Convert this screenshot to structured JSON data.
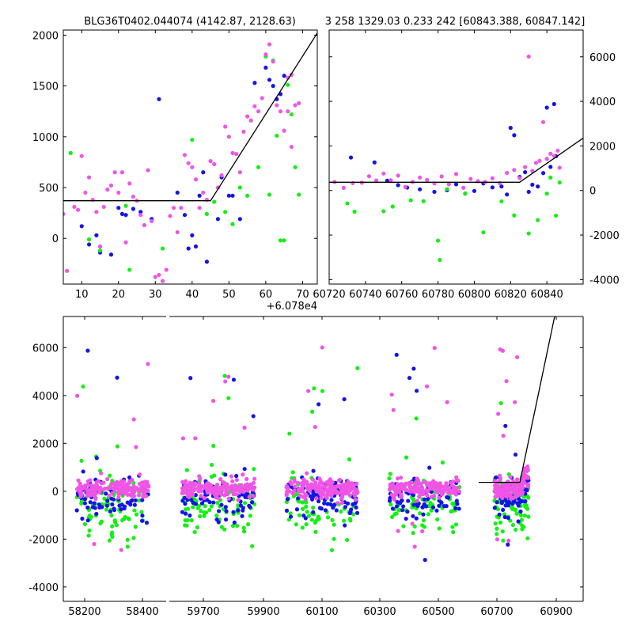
{
  "header": {
    "left_title": "BLG36T0402.044074 (4142.87, 2128.63)",
    "right_title": "3 258 1329.03 0.233 242 [60843.388, 60847.142]"
  },
  "colors": {
    "blue": "#1414e6",
    "green": "#14f014",
    "pink": "#f055e6",
    "model": "#000000"
  },
  "chart_data": [
    {
      "id": "top-left",
      "type": "scatter",
      "title": "BLG36T0402.044074 (4142.87, 2128.63)",
      "x_offset_label": "+6.078e4",
      "xlim": [
        5,
        74
      ],
      "ylim": [
        -450,
        2050
      ],
      "xticks": [
        10,
        20,
        30,
        40,
        50,
        60,
        70
      ],
      "yticks": [
        0,
        500,
        1000,
        1500,
        2000
      ],
      "y_axis_side": "left",
      "model": {
        "x": [
          5,
          45,
          74
        ],
        "y": [
          370,
          370,
          2020
        ]
      },
      "series": [
        {
          "color_key": "blue",
          "points": [
            [
              10,
              120
            ],
            [
              12,
              -60
            ],
            [
              14,
              30
            ],
            [
              15,
              -140
            ],
            [
              18,
              -160
            ],
            [
              20,
              300
            ],
            [
              21,
              240
            ],
            [
              22,
              230
            ],
            [
              24,
              290
            ],
            [
              26,
              260
            ],
            [
              29,
              190
            ],
            [
              31,
              1370
            ],
            [
              36,
              450
            ],
            [
              38,
              230
            ],
            [
              39,
              -100
            ],
            [
              40,
              30
            ],
            [
              41,
              -80
            ],
            [
              42,
              420
            ],
            [
              43,
              650
            ],
            [
              44,
              -230
            ],
            [
              47,
              190
            ],
            [
              48,
              600
            ],
            [
              50,
              420
            ],
            [
              51,
              420
            ],
            [
              53,
              190
            ],
            [
              57,
              1530
            ],
            [
              60,
              1680
            ],
            [
              61,
              1560
            ],
            [
              62,
              1500
            ],
            [
              63,
              1370
            ],
            [
              64,
              1420
            ],
            [
              65,
              1600
            ]
          ]
        },
        {
          "color_key": "green",
          "points": [
            [
              7,
              840
            ],
            [
              12,
              -10
            ],
            [
              15,
              -120
            ],
            [
              22,
              320
            ],
            [
              23,
              -310
            ],
            [
              32,
              -100
            ],
            [
              40,
              970
            ],
            [
              44,
              240
            ],
            [
              46,
              360
            ],
            [
              49,
              260
            ],
            [
              51,
              140
            ],
            [
              53,
              500
            ],
            [
              55,
              420
            ],
            [
              58,
              700
            ],
            [
              60,
              1790
            ],
            [
              61,
              430
            ],
            [
              62,
              1750
            ],
            [
              63,
              1010
            ],
            [
              64,
              -20
            ],
            [
              65,
              -20
            ],
            [
              66,
              1510
            ],
            [
              67,
              1220
            ],
            [
              68,
              700
            ],
            [
              69,
              430
            ]
          ]
        },
        {
          "color_key": "pink",
          "points": [
            [
              5,
              240
            ],
            [
              6,
              -320
            ],
            [
              8,
              310
            ],
            [
              9,
              280
            ],
            [
              10,
              810
            ],
            [
              11,
              450
            ],
            [
              12,
              600
            ],
            [
              13,
              380
            ],
            [
              14,
              260
            ],
            [
              15,
              -80
            ],
            [
              16,
              310
            ],
            [
              17,
              480
            ],
            [
              18,
              520
            ],
            [
              19,
              650
            ],
            [
              20,
              450
            ],
            [
              21,
              650
            ],
            [
              22,
              -40
            ],
            [
              23,
              540
            ],
            [
              24,
              410
            ],
            [
              25,
              370
            ],
            [
              26,
              230
            ],
            [
              27,
              130
            ],
            [
              28,
              670
            ],
            [
              29,
              170
            ],
            [
              30,
              -380
            ],
            [
              31,
              -360
            ],
            [
              32,
              -420
            ],
            [
              33,
              -310
            ],
            [
              34,
              220
            ],
            [
              35,
              300
            ],
            [
              36,
              60
            ],
            [
              37,
              300
            ],
            [
              38,
              820
            ],
            [
              39,
              740
            ],
            [
              40,
              700
            ],
            [
              41,
              580
            ],
            [
              42,
              300
            ],
            [
              43,
              450
            ],
            [
              44,
              380
            ],
            [
              45,
              760
            ],
            [
              46,
              730
            ],
            [
              47,
              500
            ],
            [
              48,
              620
            ],
            [
              49,
              1100
            ],
            [
              50,
              1000
            ],
            [
              51,
              840
            ],
            [
              52,
              830
            ],
            [
              53,
              650
            ],
            [
              54,
              1050
            ],
            [
              55,
              1200
            ],
            [
              56,
              1160
            ],
            [
              57,
              1300
            ],
            [
              58,
              1250
            ],
            [
              59,
              1380
            ],
            [
              60,
              1810
            ],
            [
              61,
              1910
            ],
            [
              62,
              1740
            ],
            [
              63,
              1310
            ],
            [
              64,
              1250
            ],
            [
              65,
              1060
            ],
            [
              66,
              1250
            ],
            [
              67,
              900
            ],
            [
              68,
              1310
            ],
            [
              69,
              1330
            ],
            [
              66,
              1580
            ],
            [
              67,
              1610
            ]
          ]
        }
      ]
    },
    {
      "id": "top-right",
      "type": "scatter",
      "title": "3 258 1329.03 0.233 242 [60843.388, 60847.142]",
      "xlim": [
        60720,
        60860
      ],
      "ylim": [
        -4200,
        7200
      ],
      "xticks": [
        60720,
        60740,
        60760,
        60780,
        60800,
        60820,
        60840
      ],
      "yticks": [
        -4000,
        -2000,
        0,
        2000,
        4000,
        6000
      ],
      "y_axis_side": "right",
      "model": {
        "x": [
          60720,
          60825,
          60860
        ],
        "y": [
          370,
          370,
          2350
        ]
      },
      "series": [
        {
          "color_key": "blue",
          "points": [
            [
              60732,
              1480
            ],
            [
              60745,
              1260
            ],
            [
              60752,
              440
            ],
            [
              60758,
              240
            ],
            [
              60763,
              130
            ],
            [
              60770,
              50
            ],
            [
              60778,
              -60
            ],
            [
              60785,
              10
            ],
            [
              60790,
              280
            ],
            [
              60795,
              -140
            ],
            [
              60800,
              -20
            ],
            [
              60805,
              320
            ],
            [
              60810,
              140
            ],
            [
              60815,
              180
            ],
            [
              60818,
              -180
            ],
            [
              60820,
              2810
            ],
            [
              60822,
              2480
            ],
            [
              60825,
              610
            ],
            [
              60828,
              820
            ],
            [
              60830,
              -60
            ],
            [
              60832,
              260
            ],
            [
              60835,
              180
            ],
            [
              60838,
              780
            ],
            [
              60840,
              3720
            ],
            [
              60842,
              1060
            ],
            [
              60844,
              3880
            ],
            [
              60845,
              1540
            ]
          ]
        },
        {
          "color_key": "green",
          "points": [
            [
              60730,
              -580
            ],
            [
              60734,
              -950
            ],
            [
              60750,
              -930
            ],
            [
              60755,
              -720
            ],
            [
              60765,
              -440
            ],
            [
              60772,
              -480
            ],
            [
              60780,
              -2250
            ],
            [
              60781,
              -3120
            ],
            [
              60785,
              60
            ],
            [
              60795,
              -130
            ],
            [
              60805,
              -1880
            ],
            [
              60815,
              -490
            ],
            [
              60822,
              -1120
            ],
            [
              60830,
              -1930
            ],
            [
              60835,
              -1330
            ],
            [
              60840,
              -140
            ],
            [
              60842,
              580
            ],
            [
              60845,
              -1130
            ],
            [
              60847,
              360
            ]
          ]
        },
        {
          "color_key": "pink",
          "points": [
            [
              60723,
              380
            ],
            [
              60728,
              120
            ],
            [
              60733,
              330
            ],
            [
              60738,
              350
            ],
            [
              60742,
              640
            ],
            [
              60746,
              450
            ],
            [
              60750,
              760
            ],
            [
              60754,
              460
            ],
            [
              60758,
              670
            ],
            [
              60762,
              160
            ],
            [
              60766,
              380
            ],
            [
              60770,
              580
            ],
            [
              60774,
              470
            ],
            [
              60778,
              320
            ],
            [
              60782,
              630
            ],
            [
              60786,
              280
            ],
            [
              60790,
              740
            ],
            [
              60794,
              120
            ],
            [
              60798,
              520
            ],
            [
              60802,
              420
            ],
            [
              60806,
              380
            ],
            [
              60810,
              550
            ],
            [
              60814,
              330
            ],
            [
              60818,
              790
            ],
            [
              60822,
              920
            ],
            [
              60825,
              560
            ],
            [
              60828,
              1050
            ],
            [
              60830,
              6010
            ],
            [
              60832,
              880
            ],
            [
              60834,
              1240
            ],
            [
              60836,
              1330
            ],
            [
              60838,
              3070
            ],
            [
              60840,
              1420
            ],
            [
              60842,
              1650
            ],
            [
              60844,
              1550
            ],
            [
              60846,
              1790
            ],
            [
              60847,
              1020
            ]
          ]
        }
      ]
    },
    {
      "id": "bottom",
      "type": "scatter",
      "xlim": [
        58130,
        61050
      ],
      "ylim": [
        -4600,
        7300
      ],
      "xtick_labels": [
        "58200",
        "58400",
        "59700",
        "59900",
        "60100",
        "60300",
        "60500",
        "60700",
        "60900"
      ],
      "yticks": [
        -4000,
        -2000,
        0,
        2000,
        4000,
        6000
      ],
      "y_axis_side": "left",
      "note": "Broken x-axis: seasons compressed onto one panel",
      "seasons": [
        {
          "label_min": "58200",
          "label_max": "58400",
          "range": [
            58130,
            58440
          ]
        },
        {
          "range": [
            59630,
            59900
          ]
        },
        {
          "range": [
            60050,
            60350
          ]
        },
        {
          "range": [
            60420,
            60620
          ]
        },
        {
          "range": [
            60640,
            61050
          ]
        }
      ]
    }
  ]
}
